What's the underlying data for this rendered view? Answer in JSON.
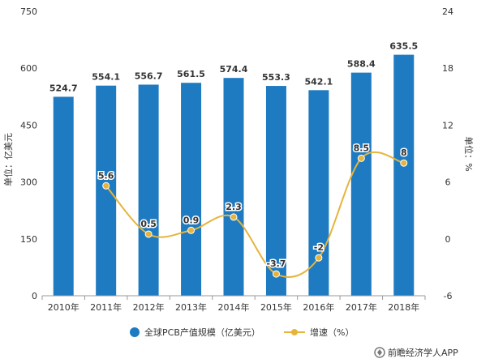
{
  "chart_data": {
    "type": "bar+line",
    "categories": [
      "2010年",
      "2011年",
      "2012年",
      "2013年",
      "2014年",
      "2015年",
      "2016年",
      "2017年",
      "2018年"
    ],
    "series": [
      {
        "name": "全球PCB产值规模（亿美元）",
        "type": "bar",
        "axis": "left",
        "values": [
          524.7,
          554.1,
          556.7,
          561.5,
          574.4,
          553.3,
          542.1,
          588.4,
          635.5
        ],
        "labels": [
          "524.7",
          "554.1",
          "556.7",
          "561.5",
          "574.4",
          "553.3",
          "542.1",
          "588.4",
          "635.5"
        ]
      },
      {
        "name": "增速（%）",
        "type": "line",
        "axis": "right",
        "values": [
          null,
          5.6,
          0.5,
          0.9,
          2.3,
          -3.7,
          -2,
          8.5,
          8
        ],
        "labels": [
          "",
          "5.6",
          "0.5",
          "0.9",
          "2.3",
          "-3.7",
          "-2",
          "8.5",
          "8"
        ]
      }
    ],
    "y_left": {
      "label": "单位：亿美元",
      "ylim": [
        0,
        750
      ],
      "ticks": [
        "0",
        "150",
        "300",
        "450",
        "600",
        "750"
      ]
    },
    "y_right": {
      "label": "单位：%",
      "ylim": [
        -6,
        24
      ],
      "ticks": [
        "-6",
        "0",
        "6",
        "12",
        "18",
        "24"
      ]
    },
    "grid": false,
    "legend": "bottom",
    "colors": {
      "bar": "#1f7bc1",
      "line": "#e6b43c"
    }
  },
  "footer": {
    "text": "前瞻经济学人APP"
  }
}
